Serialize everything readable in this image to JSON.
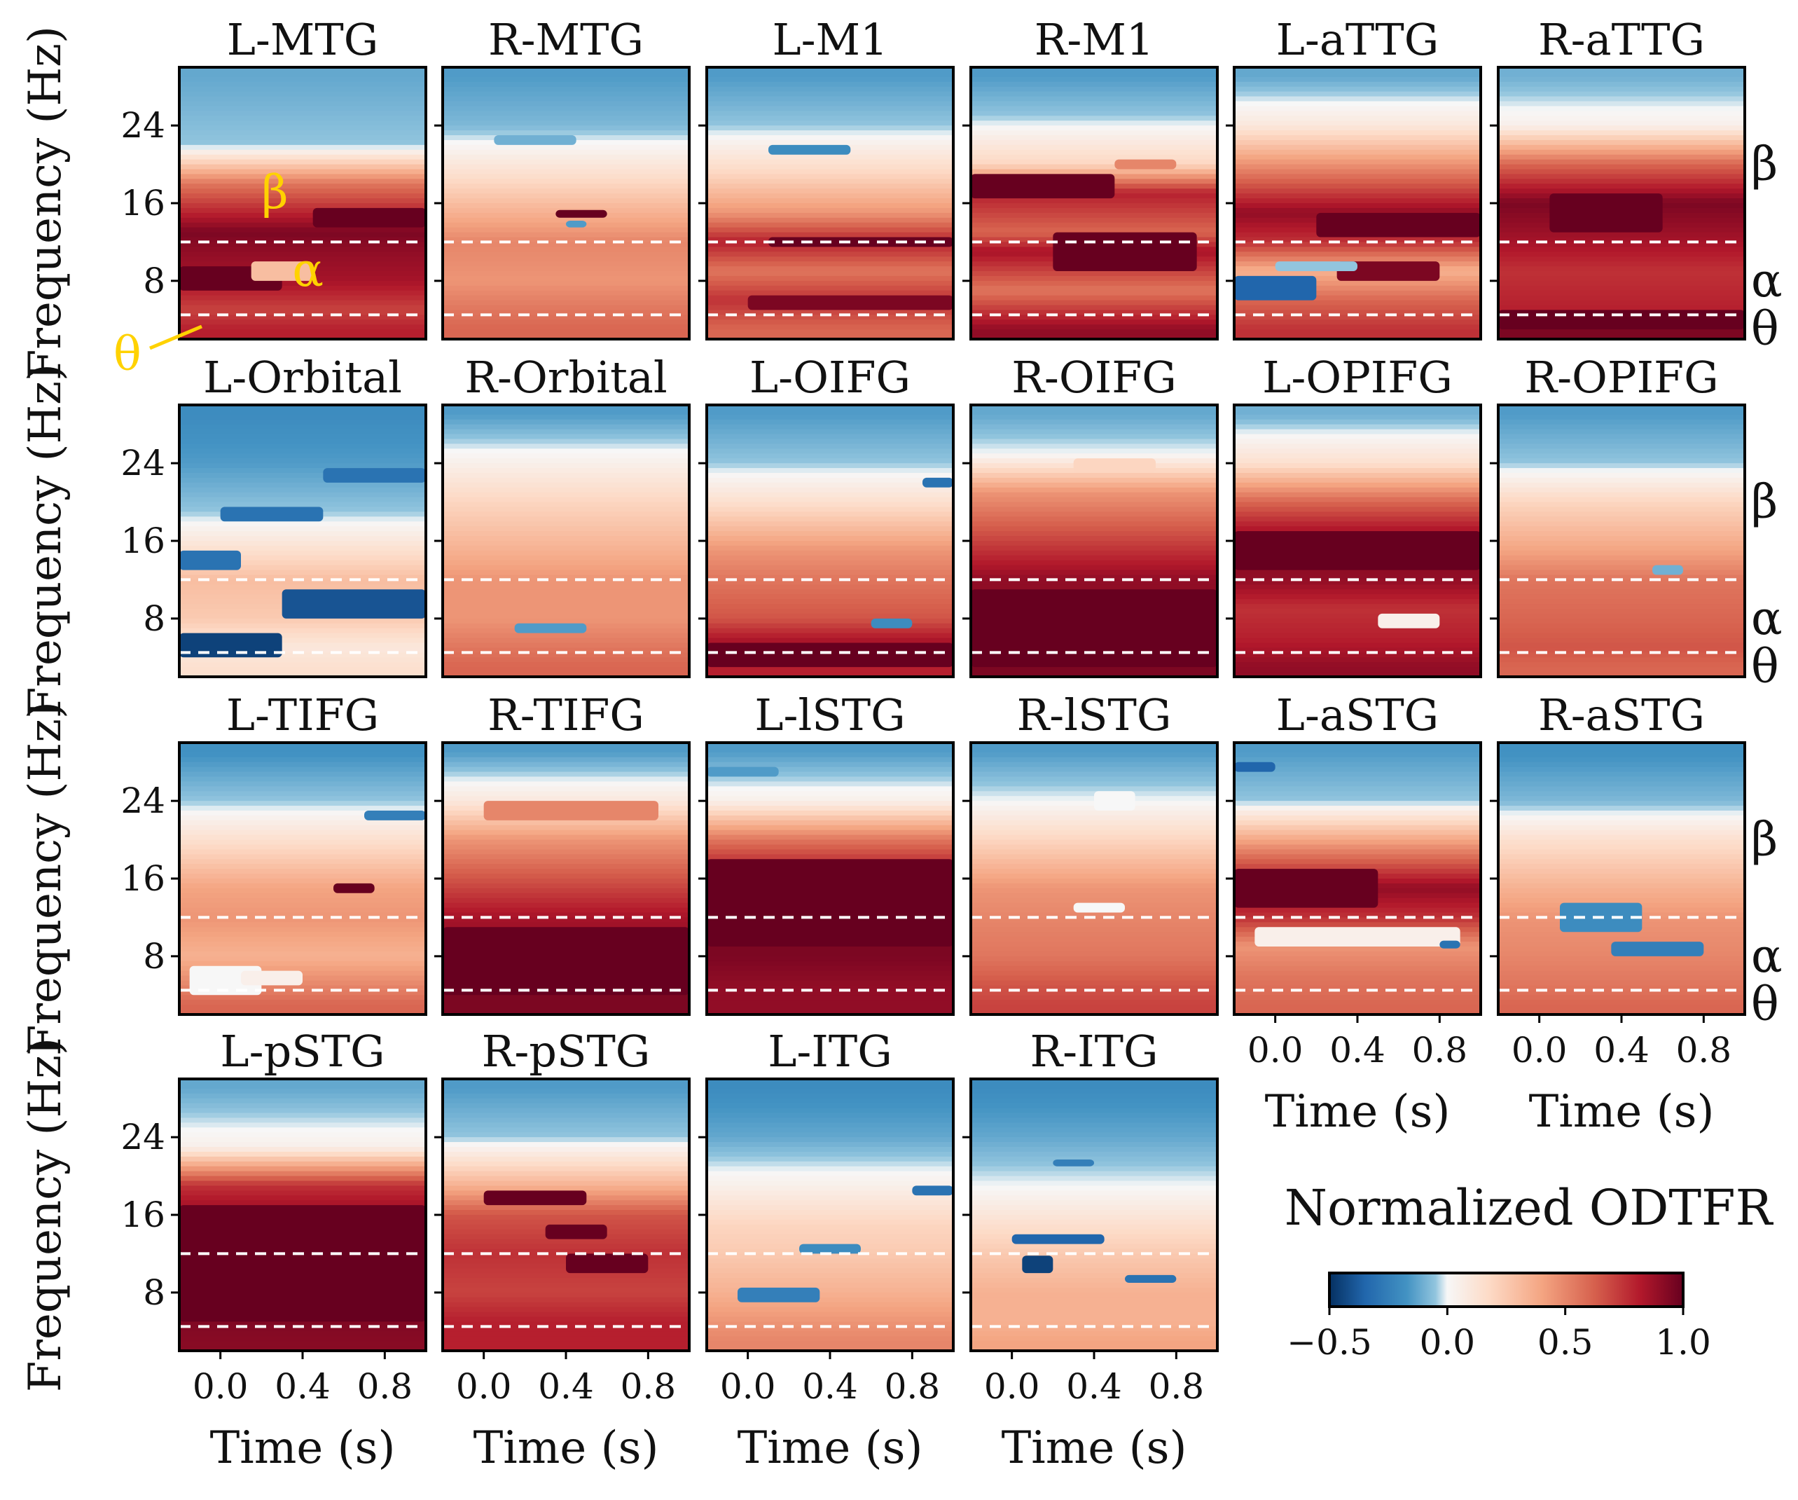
{
  "chart_data": {
    "type": "heatmap",
    "colormap": "RdBu_r",
    "panels": [
      {
        "title": "L-MTG"
      },
      {
        "title": "R-MTG"
      },
      {
        "title": "L-M1"
      },
      {
        "title": "R-M1"
      },
      {
        "title": "L-aTTG"
      },
      {
        "title": "R-aTTG"
      },
      {
        "title": "L-Orbital"
      },
      {
        "title": "R-Orbital"
      },
      {
        "title": "L-OIFG"
      },
      {
        "title": "R-OIFG"
      },
      {
        "title": "L-OPIFG"
      },
      {
        "title": "R-OPIFG"
      },
      {
        "title": "L-TIFG"
      },
      {
        "title": "R-TIFG"
      },
      {
        "title": "L-lSTG"
      },
      {
        "title": "R-lSTG"
      },
      {
        "title": "L-aSTG"
      },
      {
        "title": "R-aSTG"
      },
      {
        "title": "L-pSTG"
      },
      {
        "title": "R-pSTG"
      },
      {
        "title": "L-ITG"
      },
      {
        "title": "R-ITG"
      }
    ],
    "xlabel": "Time (s)",
    "ylabel": "Frequency (Hz)",
    "x_ticks": [
      "0.0",
      "0.4",
      "0.8"
    ],
    "x_tick_values": [
      0.0,
      0.4,
      0.8
    ],
    "xlim": [
      -0.2,
      1.0
    ],
    "y_ticks": [
      "8",
      "16",
      "24"
    ],
    "y_tick_values": [
      8,
      16,
      24
    ],
    "ylim": [
      2,
      30
    ],
    "band_boundaries_hz": [
      4.5,
      12
    ],
    "band_labels": {
      "beta": "β",
      "alpha": "α",
      "theta": "θ"
    },
    "colorbar": {
      "title": "Normalized ODTFR",
      "range": [
        -0.5,
        1.0
      ],
      "ticks": [
        "−0.5",
        "0.0",
        "0.5",
        "1.0"
      ],
      "tick_values": [
        -0.5,
        0.0,
        0.5,
        1.0
      ]
    },
    "annotation_color": "#FFD200"
  }
}
